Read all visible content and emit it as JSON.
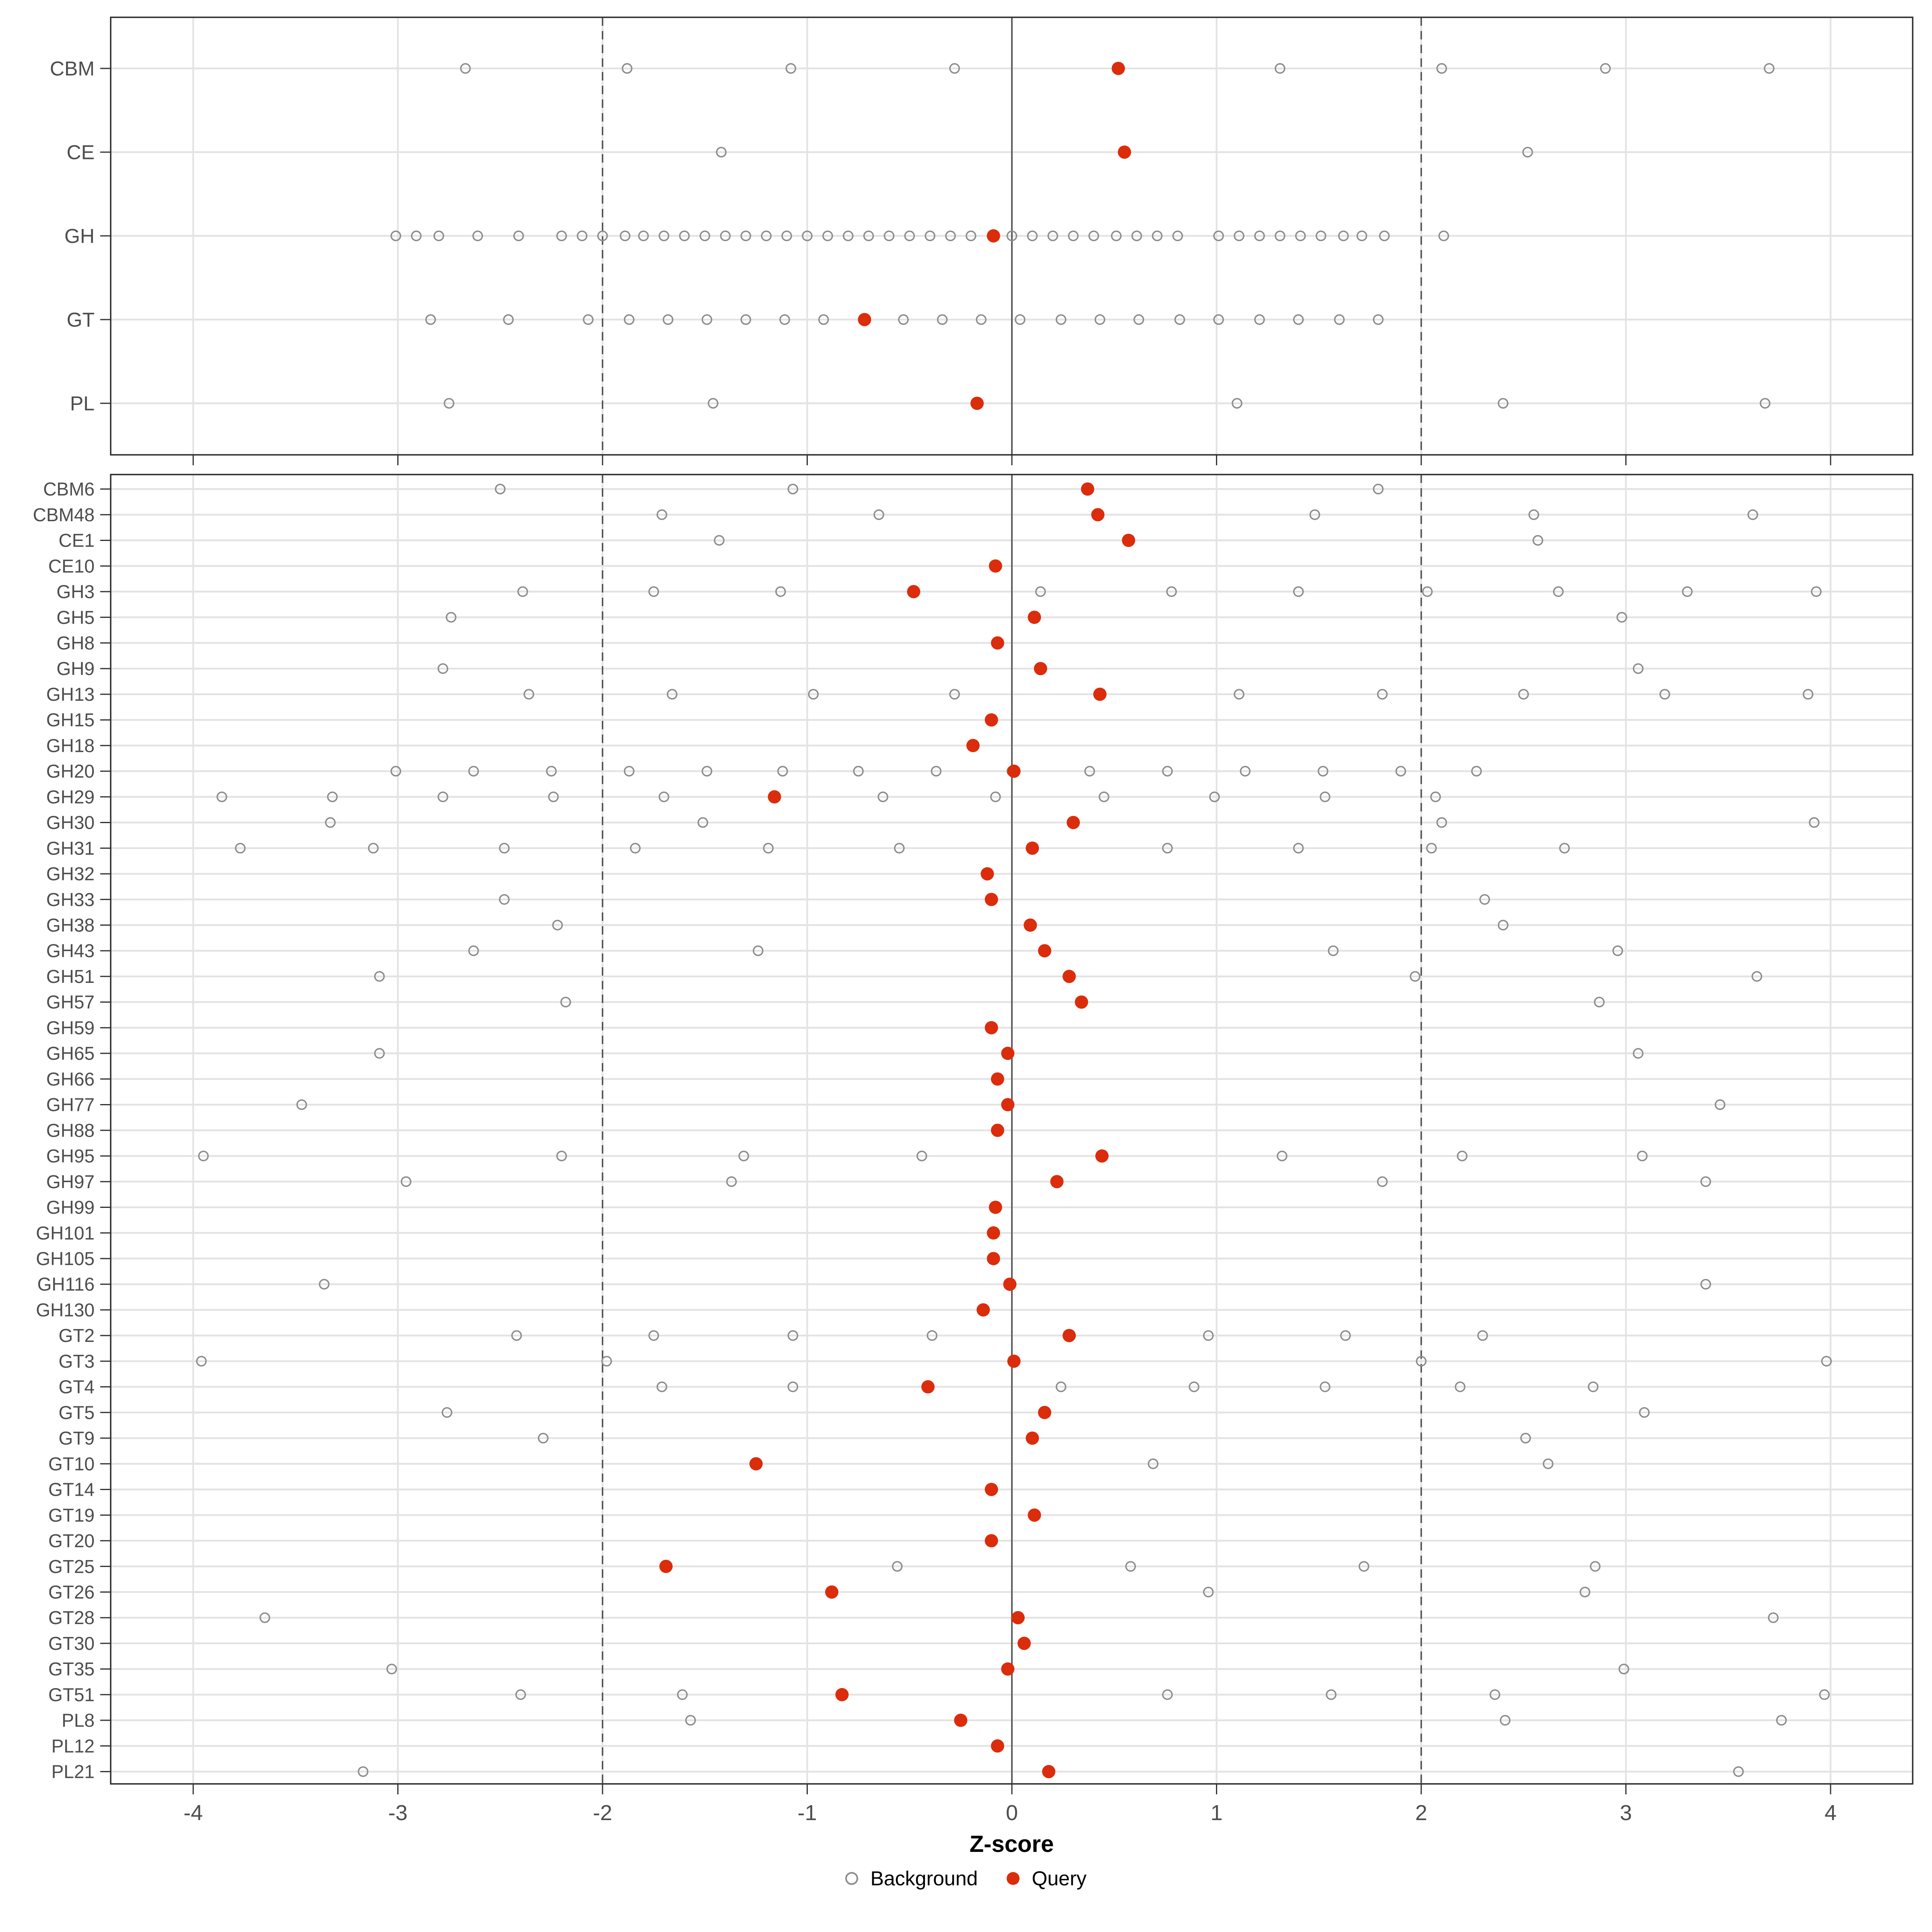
{
  "chart_data": {
    "type": "scatter",
    "title": "",
    "xlabel": "Z-score",
    "x_ticks": [
      -4,
      -3,
      -2,
      -1,
      0,
      1,
      2,
      3,
      4
    ],
    "xlim": [
      -4.4,
      4.4
    ],
    "grid": true,
    "reference_lines": {
      "solid": [
        0
      ],
      "dashed": [
        -2,
        2
      ]
    },
    "legend_position": "bottom",
    "legend": [
      {
        "label": "Background",
        "marker": "open-circle",
        "color": "#8C8C8C"
      },
      {
        "label": "Query",
        "marker": "filled-circle",
        "color": "#DB2C0C"
      }
    ],
    "panels": [
      {
        "name": "families",
        "rows": [
          {
            "label": "CBM",
            "query": 0.52,
            "background": [
              -2.67,
              -1.88,
              -1.08,
              -0.28,
              1.31,
              2.1,
              2.9,
              3.7
            ]
          },
          {
            "label": "CE",
            "query": 0.55,
            "background": [
              -1.42,
              2.52
            ]
          },
          {
            "label": "GH",
            "query": -0.09,
            "background": [
              -3.01,
              -2.91,
              -2.8,
              -2.61,
              -2.41,
              -2.2,
              -2.1,
              -2.0,
              -1.89,
              -1.8,
              -1.7,
              -1.6,
              -1.5,
              -1.4,
              -1.3,
              -1.2,
              -1.1,
              -1.0,
              -0.9,
              -0.8,
              -0.7,
              -0.6,
              -0.5,
              -0.4,
              -0.3,
              -0.2,
              0.0,
              0.1,
              0.2,
              0.3,
              0.4,
              0.51,
              0.61,
              0.71,
              0.81,
              1.01,
              1.11,
              1.21,
              1.31,
              1.41,
              1.51,
              1.62,
              1.71,
              1.82,
              2.11
            ]
          },
          {
            "label": "GT",
            "query": -0.72,
            "background": [
              -2.84,
              -2.46,
              -2.07,
              -1.87,
              -1.68,
              -1.49,
              -1.3,
              -1.11,
              -0.92,
              -0.53,
              -0.34,
              -0.15,
              0.04,
              0.24,
              0.43,
              0.62,
              0.82,
              1.01,
              1.21,
              1.4,
              1.6,
              1.79
            ]
          },
          {
            "label": "PL",
            "query": -0.17,
            "background": [
              -2.75,
              -1.46,
              1.1,
              2.4,
              3.68
            ]
          }
        ]
      },
      {
        "name": "subfamilies",
        "rows": [
          {
            "label": "CBM6",
            "query": 0.37,
            "background": [
              -2.5,
              -1.07,
              1.79
            ]
          },
          {
            "label": "CBM48",
            "query": 0.42,
            "background": [
              -1.71,
              -0.65,
              1.48,
              2.55,
              3.62
            ]
          },
          {
            "label": "CE1",
            "query": 0.57,
            "background": [
              -1.43,
              2.57
            ]
          },
          {
            "label": "CE10",
            "query": -0.08,
            "background": []
          },
          {
            "label": "GH3",
            "query": -0.48,
            "background": [
              -2.39,
              -1.75,
              -1.13,
              0.14,
              0.78,
              1.4,
              2.03,
              2.67,
              3.3,
              3.93
            ]
          },
          {
            "label": "GH5",
            "query": 0.11,
            "background": [
              -2.74,
              2.98
            ]
          },
          {
            "label": "GH8",
            "query": -0.07,
            "background": []
          },
          {
            "label": "GH9",
            "query": 0.14,
            "background": [
              -2.78,
              3.06
            ]
          },
          {
            "label": "GH13",
            "query": 0.43,
            "background": [
              -2.36,
              -1.66,
              -0.97,
              -0.28,
              1.11,
              1.81,
              2.5,
              3.19,
              3.89
            ]
          },
          {
            "label": "GH15",
            "query": -0.1,
            "background": []
          },
          {
            "label": "GH18",
            "query": -0.19,
            "background": []
          },
          {
            "label": "GH20",
            "query": 0.01,
            "background": [
              -3.01,
              -2.63,
              -2.25,
              -1.87,
              -1.49,
              -1.12,
              -0.75,
              -0.37,
              0.0,
              0.38,
              0.76,
              1.14,
              1.52,
              1.9,
              2.27
            ]
          },
          {
            "label": "GH29",
            "query": -1.16,
            "background": [
              -3.86,
              -3.32,
              -2.78,
              -2.24,
              -1.7,
              -0.63,
              -0.08,
              0.45,
              0.99,
              1.53,
              2.07
            ]
          },
          {
            "label": "GH30",
            "query": 0.3,
            "background": [
              -3.33,
              -1.51,
              2.1,
              3.92
            ]
          },
          {
            "label": "GH31",
            "query": 0.1,
            "background": [
              -3.77,
              -3.12,
              -2.48,
              -1.84,
              -1.19,
              -0.55,
              0.76,
              1.4,
              2.05,
              2.7
            ]
          },
          {
            "label": "GH32",
            "query": -0.12,
            "background": []
          },
          {
            "label": "GH33",
            "query": -0.1,
            "background": [
              -2.48,
              2.31
            ]
          },
          {
            "label": "GH38",
            "query": 0.09,
            "background": [
              -2.22,
              2.4
            ]
          },
          {
            "label": "GH43",
            "query": 0.16,
            "background": [
              -2.63,
              -1.24,
              1.57,
              2.96
            ]
          },
          {
            "label": "GH51",
            "query": 0.28,
            "background": [
              -3.09,
              1.97,
              3.64
            ]
          },
          {
            "label": "GH57",
            "query": 0.34,
            "background": [
              -2.18,
              2.87
            ]
          },
          {
            "label": "GH59",
            "query": -0.1,
            "background": []
          },
          {
            "label": "GH65",
            "query": -0.02,
            "background": [
              -3.09,
              3.06
            ]
          },
          {
            "label": "GH66",
            "query": -0.07,
            "background": []
          },
          {
            "label": "GH77",
            "query": -0.02,
            "background": [
              -3.47,
              3.46
            ]
          },
          {
            "label": "GH88",
            "query": -0.07,
            "background": []
          },
          {
            "label": "GH95",
            "query": 0.44,
            "background": [
              -3.95,
              -2.2,
              -1.31,
              -0.44,
              1.32,
              2.2,
              3.08
            ]
          },
          {
            "label": "GH97",
            "query": 0.22,
            "background": [
              -2.96,
              -1.37,
              1.81,
              3.39
            ]
          },
          {
            "label": "GH99",
            "query": -0.08,
            "background": []
          },
          {
            "label": "GH101",
            "query": -0.09,
            "background": []
          },
          {
            "label": "GH105",
            "query": -0.09,
            "background": []
          },
          {
            "label": "GH116",
            "query": -0.01,
            "background": [
              -3.36,
              3.39
            ]
          },
          {
            "label": "GH130",
            "query": -0.14,
            "background": []
          },
          {
            "label": "GT2",
            "query": 0.28,
            "background": [
              -2.42,
              -1.75,
              -1.07,
              -0.39,
              0.96,
              1.63,
              2.3
            ]
          },
          {
            "label": "GT3",
            "query": 0.01,
            "background": [
              -3.96,
              -1.98,
              2.0,
              3.98
            ]
          },
          {
            "label": "GT4",
            "query": -0.41,
            "background": [
              -1.71,
              -1.07,
              0.24,
              0.89,
              1.53,
              2.19,
              2.84
            ]
          },
          {
            "label": "GT5",
            "query": 0.16,
            "background": [
              -2.76,
              3.09
            ]
          },
          {
            "label": "GT9",
            "query": 0.1,
            "background": [
              -2.29,
              2.51
            ]
          },
          {
            "label": "GT10",
            "query": -1.25,
            "background": [
              0.69,
              2.62
            ]
          },
          {
            "label": "GT14",
            "query": -0.1,
            "background": []
          },
          {
            "label": "GT19",
            "query": 0.11,
            "background": []
          },
          {
            "label": "GT20",
            "query": -0.1,
            "background": []
          },
          {
            "label": "GT25",
            "query": -1.69,
            "background": [
              -0.56,
              0.58,
              1.72,
              2.85
            ]
          },
          {
            "label": "GT26",
            "query": -0.88,
            "background": [
              0.96,
              2.8
            ]
          },
          {
            "label": "GT28",
            "query": 0.03,
            "background": [
              -3.65,
              3.72
            ]
          },
          {
            "label": "GT30",
            "query": 0.06,
            "background": []
          },
          {
            "label": "GT35",
            "query": -0.02,
            "background": [
              -3.03,
              2.99
            ]
          },
          {
            "label": "GT51",
            "query": -0.83,
            "background": [
              -2.4,
              -1.61,
              0.76,
              1.56,
              2.36,
              3.97
            ]
          },
          {
            "label": "PL8",
            "query": -0.25,
            "background": [
              -1.57,
              2.41,
              3.76
            ]
          },
          {
            "label": "PL12",
            "query": -0.07,
            "background": []
          },
          {
            "label": "PL21",
            "query": 0.18,
            "background": [
              -3.17,
              3.55
            ]
          }
        ]
      }
    ]
  },
  "colors": {
    "query": "#DB2C0C",
    "background_stroke": "#8C8C8C",
    "gridline": "#E3E3E3",
    "reference_line": "#4D4D4D",
    "panel_border": "#2D2D2D",
    "tick": "#333333",
    "axis_text": "#4D4D4D",
    "title_text": "#000000"
  }
}
